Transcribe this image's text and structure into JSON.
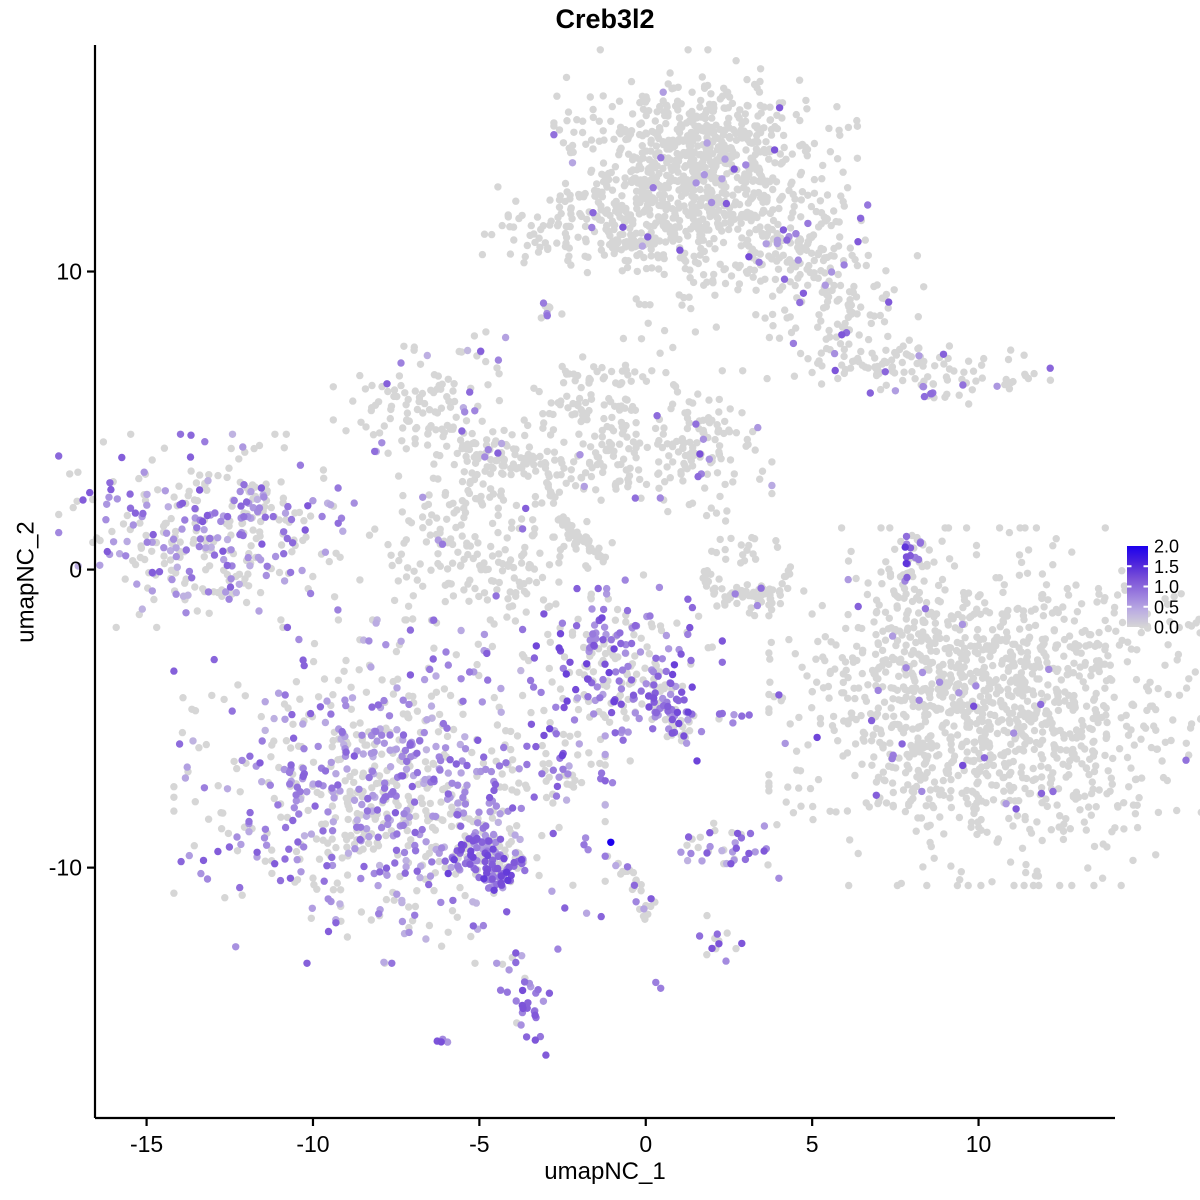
{
  "page": {
    "title": "Creb3l2"
  },
  "chart_data": {
    "type": "scatter",
    "subtype": "umap_feature_plot",
    "title": "Creb3l2",
    "xlabel": "umapNC_1",
    "ylabel": "umapNC_2",
    "xlim": [
      -16.55,
      14.1
    ],
    "ylim": [
      -18.4,
      17.6
    ],
    "x_ticks": [
      -15,
      -10,
      -5,
      0,
      5,
      10
    ],
    "y_ticks": [
      10,
      0,
      -10
    ],
    "grid": false,
    "point_radius": 3.7,
    "color_scale": {
      "low_label": "0.0",
      "high_label": "2.0",
      "stops": [
        {
          "v": 0.0,
          "c": "#D6D6D6"
        },
        {
          "v": 0.4,
          "c": "#BCAEE2"
        },
        {
          "v": 0.8,
          "c": "#9B7EDE"
        },
        {
          "v": 1.2,
          "c": "#7A50D8"
        },
        {
          "v": 1.6,
          "c": "#4A22DC"
        },
        {
          "v": 2.0,
          "c": "#1C00EE"
        }
      ]
    },
    "legend": {
      "position": "right",
      "min": 0.0,
      "max": 2.0,
      "tick_labels": [
        "2.0",
        "1.5",
        "1.0",
        "0.5",
        "0.0"
      ]
    },
    "clusters": [
      {
        "name": "top-main-a",
        "shape": "blob",
        "x": 1.8,
        "y": 14.2,
        "rx": 1.9,
        "ry": 1.35,
        "n": 430,
        "frac": 0.015,
        "v": 0.8
      },
      {
        "name": "top-main-b",
        "shape": "blob",
        "x": 0.7,
        "y": 13.0,
        "rx": 1.4,
        "ry": 1.2,
        "n": 260,
        "frac": 0.015,
        "v": 0.8
      },
      {
        "name": "top-neck",
        "shape": "blob",
        "x": 1.05,
        "y": 11.1,
        "rx": 1.0,
        "ry": 1.6,
        "n": 130,
        "frac": 0.03,
        "v": 0.8
      },
      {
        "name": "top-right-arm",
        "shape": "blob",
        "x": 4.4,
        "y": 10.75,
        "rx": 2.1,
        "ry": 1.1,
        "rot": -44,
        "n": 330,
        "frac": 0.07,
        "v": 0.85
      },
      {
        "name": "top-left-small",
        "shape": "blob",
        "x": -2.25,
        "y": 11.4,
        "rx": 1.3,
        "ry": 0.6,
        "n": 115,
        "frac": 0.035,
        "v": 0.8
      },
      {
        "name": "top-left-trail",
        "shape": "strand",
        "x": -1.05,
        "y": 10.85,
        "x2": 0.4,
        "y2": 11.0,
        "w": 0.2,
        "n": 25,
        "frac": 0.05,
        "v": 0.8
      },
      {
        "name": "tiny-mid-a",
        "shape": "strand",
        "x": -3.2,
        "y": 8.3,
        "x2": -2.8,
        "y2": 8.8,
        "w": 0.15,
        "n": 9,
        "frac": 0.35,
        "v": 0.9
      },
      {
        "name": "tiny-mid-b",
        "shape": "blob",
        "x": -4.9,
        "y": 7.3,
        "rx": 0.4,
        "ry": 0.35,
        "n": 11,
        "frac": 0.2,
        "v": 0.7
      },
      {
        "name": "right-elongated",
        "shape": "blob",
        "x": 8.1,
        "y": 6.8,
        "rx": 1.95,
        "ry": 0.42,
        "rot": -8,
        "n": 115,
        "frac": 0.13,
        "v": 0.85
      },
      {
        "name": "right-elongated-tail",
        "shape": "strand",
        "x": 8.3,
        "y": 6.1,
        "x2": 8.9,
        "y2": 5.7,
        "w": 0.12,
        "n": 8,
        "frac": 0.5,
        "v": 0.9
      },
      {
        "name": "net-northwest",
        "shape": "blob",
        "x": -6.75,
        "y": 5.45,
        "rx": 1.1,
        "ry": 0.85,
        "n": 105,
        "frac": 0.09,
        "v": 0.75
      },
      {
        "name": "net-northwest-arm",
        "shape": "strand",
        "x": -5.7,
        "y": 4.2,
        "x2": -3.15,
        "y2": 3.6,
        "w": 0.35,
        "n": 65,
        "frac": 0.045,
        "v": 0.8
      },
      {
        "name": "net-north",
        "shape": "blob",
        "x": -1.35,
        "y": 5.15,
        "rx": 1.15,
        "ry": 1.15,
        "n": 135,
        "frac": 0.03,
        "v": 0.8
      },
      {
        "name": "net-northeast",
        "shape": "blob",
        "x": 1.75,
        "y": 4.15,
        "rx": 0.85,
        "ry": 1.05,
        "n": 125,
        "frac": 0.06,
        "v": 0.8
      },
      {
        "name": "net-bridge",
        "shape": "strand",
        "x": -3.0,
        "y": 3.0,
        "x2": -0.15,
        "y2": 3.5,
        "w": 0.5,
        "n": 55,
        "frac": 0.02,
        "v": 0.8
      },
      {
        "name": "net-center",
        "shape": "blob",
        "x": -4.75,
        "y": 0.75,
        "rx": 1.6,
        "ry": 1.65,
        "n": 255,
        "frac": 0.035,
        "v": 0.8
      },
      {
        "name": "net-streak",
        "shape": "strand",
        "x": -2.65,
        "y": 1.8,
        "x2": -1.15,
        "y2": 0.25,
        "w": 0.1,
        "n": 42,
        "frac": 0,
        "v": 0.8
      },
      {
        "name": "left-cluster",
        "shape": "blob",
        "x": -13.2,
        "y": 1.3,
        "rx": 1.85,
        "ry": 1.35,
        "n": 335,
        "frac": 0.45,
        "v": 0.75
      },
      {
        "name": "left-cluster-fringe",
        "shape": "strand",
        "x": -12.1,
        "y": 2.2,
        "x2": -10.8,
        "y2": 2.5,
        "w": 0.3,
        "n": 22,
        "frac": 0.35,
        "v": 0.75
      },
      {
        "name": "sliver-top",
        "shape": "strand",
        "x": 8.25,
        "y": 1.05,
        "x2": 7.85,
        "y2": 0.05,
        "w": 0.17,
        "n": 15,
        "frac": 0.85,
        "v": 1.05
      },
      {
        "name": "sliver-bottom",
        "shape": "strand",
        "x": 7.85,
        "y": -0.05,
        "x2": 7.7,
        "y2": -1.0,
        "w": 0.2,
        "n": 16,
        "frac": 0.2,
        "v": 0.8
      },
      {
        "name": "crescent",
        "shape": "strand",
        "x": 1.65,
        "y": -0.25,
        "x2": 4.35,
        "y2": -0.4,
        "bend": -0.75,
        "w": 0.28,
        "n": 72,
        "frac": 0.02,
        "v": 0.8
      },
      {
        "name": "crescent-clump",
        "shape": "blob",
        "x": 2.9,
        "y": 0.75,
        "rx": 0.45,
        "ry": 0.3,
        "n": 18,
        "frac": 0,
        "v": 0.8
      },
      {
        "name": "center-purple",
        "shape": "blob",
        "x": -0.7,
        "y": -3.3,
        "rx": 1.25,
        "ry": 1.3,
        "n": 235,
        "frac": 0.55,
        "v": 0.95
      },
      {
        "name": "center-tail",
        "shape": "strand",
        "x": 0.35,
        "y": -4.35,
        "x2": 1.1,
        "y2": -5.3,
        "w": 0.3,
        "n": 48,
        "frac": 0.5,
        "v": 0.9
      },
      {
        "name": "center-tail-hook",
        "shape": "strand",
        "x": 1.1,
        "y": -5.3,
        "x2": 1.15,
        "y2": -5.85,
        "w": 0.12,
        "n": 10,
        "frac": 0.4,
        "v": 0.85
      },
      {
        "name": "pair-right-of-center",
        "shape": "blob",
        "x": 2.7,
        "y": -4.95,
        "rx": 0.3,
        "ry": 0.1,
        "n": 6,
        "frac": 0.7,
        "v": 0.8
      },
      {
        "name": "right-big",
        "shape": "blob",
        "x": 10.3,
        "y": -4.6,
        "rx": 2.75,
        "ry": 2.5,
        "n": 1250,
        "frac": 0.02,
        "v": 0.9
      },
      {
        "name": "right-big-fringe",
        "shape": "blob",
        "x": 8.0,
        "y": -3.35,
        "rx": 0.8,
        "ry": 1.5,
        "n": 85,
        "frac": 0.12,
        "v": 0.8
      },
      {
        "name": "bottom-left-cluster",
        "shape": "blob",
        "x": -7.7,
        "y": -7.45,
        "rx": 2.7,
        "ry": 2.4,
        "n": 840,
        "frac": 0.48,
        "v": 0.7
      },
      {
        "name": "bottom-left-tail",
        "shape": "strand",
        "x": -5.5,
        "y": -9.0,
        "x2": -4.0,
        "y2": -10.25,
        "w": 0.5,
        "n": 120,
        "frac": 0.55,
        "v": 0.95
      },
      {
        "name": "bottom-left-tip",
        "shape": "blob",
        "x": -4.35,
        "y": -10.15,
        "rx": 0.45,
        "ry": 0.3,
        "n": 26,
        "frac": 0.8,
        "v": 1.1
      },
      {
        "name": "small-mid-bottomleft",
        "shape": "blob",
        "x": -2.5,
        "y": -6.8,
        "rx": 0.65,
        "ry": 0.42,
        "n": 28,
        "frac": 0.32,
        "v": 0.8
      },
      {
        "name": "bottom-mid-cluster",
        "shape": "blob",
        "x": 2.25,
        "y": -9.35,
        "rx": 0.75,
        "ry": 0.42,
        "n": 38,
        "frac": 0.55,
        "v": 0.75
      },
      {
        "name": "bottom-mid-strand",
        "shape": "strand",
        "x": -1.0,
        "y": -9.65,
        "x2": -0.05,
        "y2": -11.8,
        "bend": 0.25,
        "w": 0.2,
        "n": 27,
        "frac": 0.25,
        "v": 0.8
      },
      {
        "name": "bottom-mid-small",
        "shape": "blob",
        "x": 2.15,
        "y": -12.4,
        "rx": 0.38,
        "ry": 0.33,
        "n": 13,
        "frac": 0.65,
        "v": 0.85
      },
      {
        "name": "bottom-purple-blob",
        "shape": "blob",
        "x": -3.65,
        "y": -14.25,
        "rx": 0.4,
        "ry": 0.85,
        "n": 32,
        "frac": 0.85,
        "v": 0.9
      },
      {
        "name": "bottom-dash",
        "shape": "strand",
        "x": -6.45,
        "y": -15.95,
        "x2": -6.0,
        "y2": -15.75,
        "w": 0.08,
        "n": 4,
        "frac": 1.0,
        "v": 0.85
      }
    ],
    "singletons": [
      {
        "x": -1.05,
        "y": -9.15,
        "v": 2.0
      },
      {
        "x": -1.15,
        "y": -9.62,
        "v": 0
      },
      {
        "x": -1.0,
        "y": -7.15,
        "v": 0.75
      },
      {
        "x": 4.65,
        "y": -6.75,
        "v": 0
      },
      {
        "x": 4.95,
        "y": -7.35,
        "v": 0
      },
      {
        "x": 0.3,
        "y": -13.85,
        "v": 0.8
      },
      {
        "x": 0.45,
        "y": -14.05,
        "v": 0.8
      },
      {
        "x": 4.3,
        "y": -2.35,
        "v": 0
      },
      {
        "x": 2.0,
        "y": -2.6,
        "v": 0
      }
    ]
  }
}
